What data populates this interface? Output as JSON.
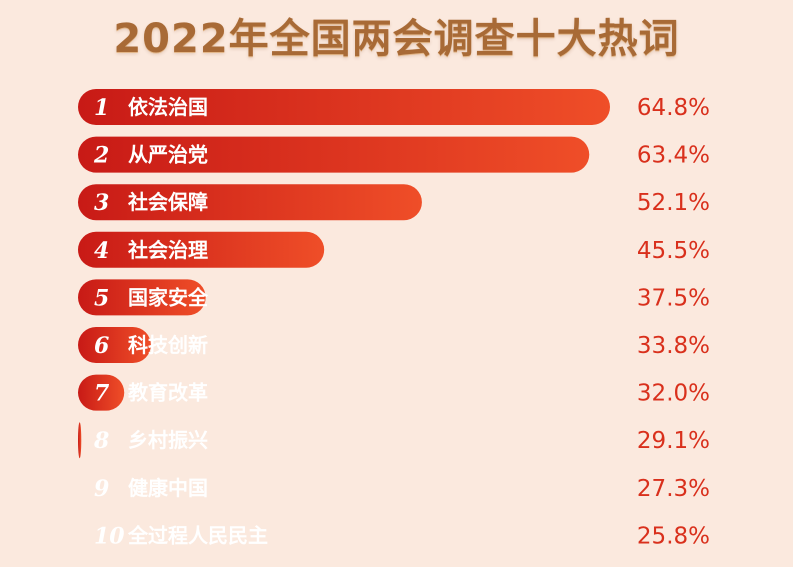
{
  "chart_data": {
    "type": "bar",
    "orientation": "horizontal",
    "title": "2022年全国两会调查十大热词",
    "ranks": [
      "1",
      "2",
      "3",
      "4",
      "5",
      "6",
      "7",
      "8",
      "9",
      "10"
    ],
    "categories": [
      "依法治国",
      "从严治党",
      "社会保障",
      "社会治理",
      "国家安全",
      "科技创新",
      "教育改革",
      "乡村振兴",
      "健康中国",
      "全过程人民民主"
    ],
    "values": [
      64.8,
      63.4,
      52.1,
      45.5,
      37.5,
      33.8,
      32.0,
      29.1,
      27.3,
      25.8
    ],
    "value_labels": [
      "64.8%",
      "63.4%",
      "52.1%",
      "45.5%",
      "37.5%",
      "33.8%",
      "32.0%",
      "29.1%",
      "27.3%",
      "25.8%"
    ],
    "unit": "%",
    "grid": false,
    "legend": "none",
    "colors": {
      "bar_start": "#c81a16",
      "bar_end": "#ef4e28",
      "value_text": "#d9301c",
      "title_text": "#a86a36",
      "background": "#fbe9de"
    }
  }
}
